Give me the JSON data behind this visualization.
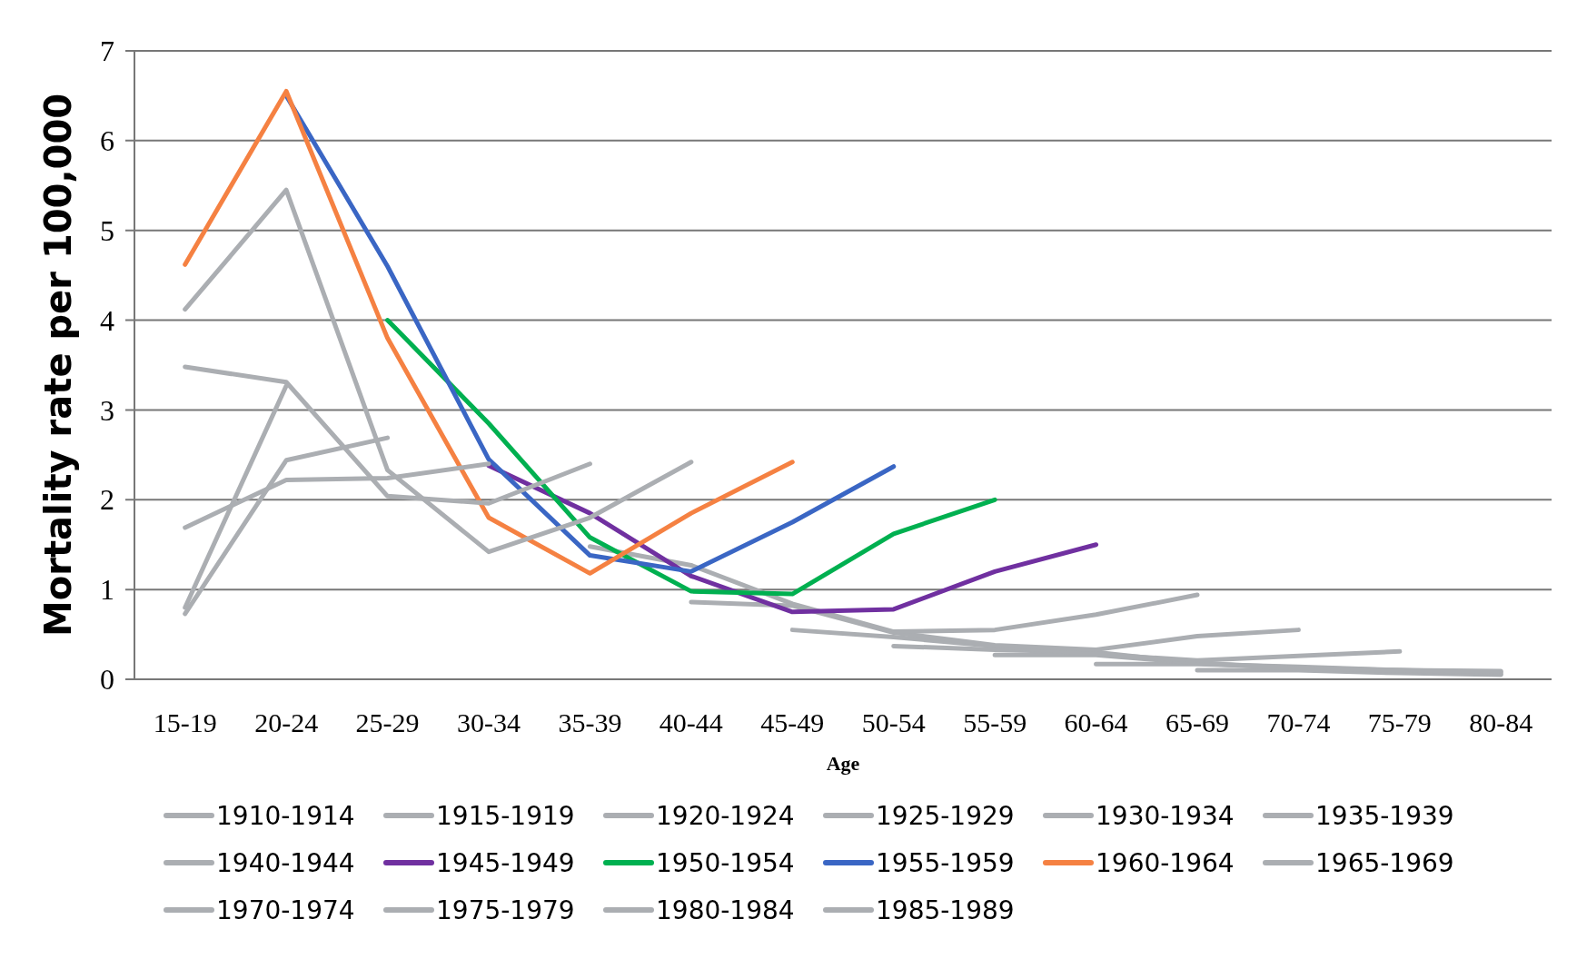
{
  "chart_data": {
    "type": "line",
    "xlabel": "Age",
    "ylabel": "Mortality rate per 100,000",
    "categories": [
      "15-19",
      "20-24",
      "25-29",
      "30-34",
      "35-39",
      "40-44",
      "45-49",
      "50-54",
      "55-59",
      "60-64",
      "65-69",
      "70-74",
      "75-79",
      "80-84"
    ],
    "ylim": [
      0,
      7
    ],
    "yticks": [
      0,
      1,
      2,
      3,
      4,
      5,
      6,
      7
    ],
    "grid": "y",
    "legend": "bottom",
    "marker": "none",
    "line_style": "solid",
    "series": [
      {
        "name": "1910-1914",
        "color": "#abaeb2",
        "values": [
          null,
          null,
          null,
          null,
          null,
          null,
          null,
          null,
          null,
          null,
          0.1,
          0.1,
          0.07,
          0.05
        ]
      },
      {
        "name": "1915-1919",
        "color": "#abaeb2",
        "values": [
          null,
          null,
          null,
          null,
          null,
          null,
          null,
          null,
          null,
          0.17,
          0.17,
          0.14,
          0.1,
          0.06
        ]
      },
      {
        "name": "1920-1924",
        "color": "#abaeb2",
        "values": [
          null,
          null,
          null,
          null,
          null,
          null,
          null,
          null,
          0.27,
          0.27,
          0.18,
          0.13,
          0.1,
          0.08
        ]
      },
      {
        "name": "1925-1929",
        "color": "#abaeb2",
        "values": [
          null,
          null,
          null,
          null,
          null,
          null,
          null,
          0.37,
          0.33,
          0.3,
          0.18,
          0.12,
          0.1,
          0.09
        ]
      },
      {
        "name": "1930-1934",
        "color": "#abaeb2",
        "values": [
          null,
          null,
          null,
          null,
          null,
          null,
          0.55,
          0.47,
          0.37,
          0.28,
          0.21,
          0.26,
          0.31,
          null
        ]
      },
      {
        "name": "1935-1939",
        "color": "#abaeb2",
        "values": [
          null,
          null,
          null,
          null,
          null,
          0.86,
          0.82,
          0.52,
          0.38,
          0.33,
          0.48,
          0.55,
          null,
          null
        ]
      },
      {
        "name": "1940-1944",
        "color": "#abaeb2",
        "values": [
          null,
          null,
          null,
          null,
          1.48,
          1.27,
          0.84,
          0.53,
          0.55,
          0.72,
          0.94,
          null,
          null,
          null
        ]
      },
      {
        "name": "1945-1949",
        "color": "#7030a0",
        "values": [
          null,
          null,
          null,
          2.38,
          1.85,
          1.15,
          0.75,
          0.78,
          1.2,
          1.5,
          null,
          null,
          null,
          null
        ]
      },
      {
        "name": "1950-1954",
        "color": "#00b050",
        "values": [
          null,
          null,
          4.0,
          2.85,
          1.58,
          0.98,
          0.95,
          1.62,
          2.0,
          null,
          null,
          null,
          null,
          null
        ]
      },
      {
        "name": "1955-1959",
        "color": "#3a66c4",
        "values": [
          null,
          6.5,
          4.6,
          2.45,
          1.38,
          1.2,
          1.75,
          2.37,
          null,
          null,
          null,
          null,
          null,
          null
        ]
      },
      {
        "name": "1960-1964",
        "color": "#f58142",
        "values": [
          4.62,
          6.55,
          3.8,
          1.8,
          1.18,
          1.85,
          2.42,
          null,
          null,
          null,
          null,
          null,
          null,
          null
        ]
      },
      {
        "name": "1965-1969",
        "color": "#abaeb2",
        "values": [
          4.12,
          5.45,
          2.33,
          1.42,
          1.8,
          2.42,
          null,
          null,
          null,
          null,
          null,
          null,
          null,
          null
        ]
      },
      {
        "name": "1970-1974",
        "color": "#abaeb2",
        "values": [
          3.48,
          3.31,
          2.04,
          1.96,
          2.4,
          null,
          null,
          null,
          null,
          null,
          null,
          null,
          null,
          null
        ]
      },
      {
        "name": "1975-1979",
        "color": "#abaeb2",
        "values": [
          1.69,
          2.22,
          2.24,
          2.4,
          null,
          null,
          null,
          null,
          null,
          null,
          null,
          null,
          null,
          null
        ]
      },
      {
        "name": "1980-1984",
        "color": "#abaeb2",
        "values": [
          0.73,
          2.44,
          2.69,
          null,
          null,
          null,
          null,
          null,
          null,
          null,
          null,
          null,
          null,
          null
        ]
      },
      {
        "name": "1985-1989",
        "color": "#abaeb2",
        "values": [
          0.8,
          3.27,
          null,
          null,
          null,
          null,
          null,
          null,
          null,
          null,
          null,
          null,
          null,
          null
        ]
      }
    ]
  }
}
